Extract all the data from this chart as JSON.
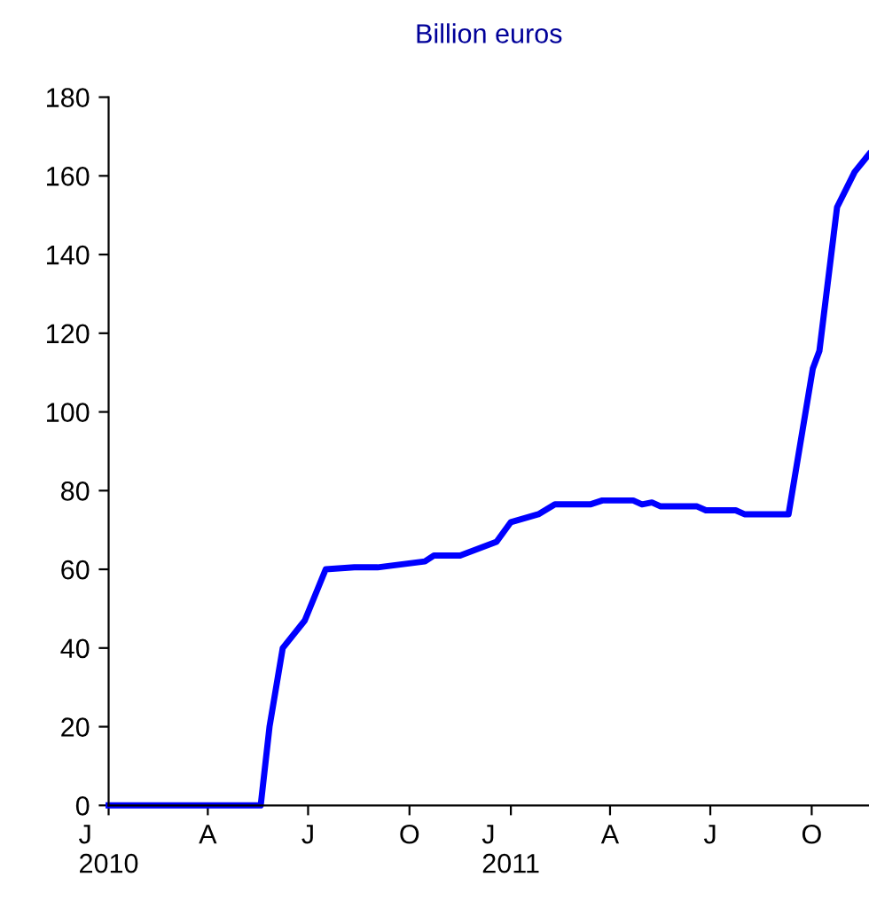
{
  "chart_data": {
    "type": "line",
    "title": "Billion euros",
    "x": [
      "2010-01-01",
      "2010-05-19",
      "2010-05-27",
      "2010-06-08",
      "2010-06-28",
      "2010-07-17",
      "2010-08-12",
      "2010-09-02",
      "2010-10-15",
      "2010-10-23",
      "2010-11-16",
      "2010-12-19",
      "2011-01-01",
      "2011-01-26",
      "2011-02-10",
      "2011-03-14",
      "2011-03-25",
      "2011-04-22",
      "2011-04-30",
      "2011-05-09",
      "2011-05-17",
      "2011-06-19",
      "2011-06-27",
      "2011-07-24",
      "2011-08-01",
      "2011-09-10",
      "2011-10-02",
      "2011-10-08",
      "2011-10-24",
      "2011-11-09",
      "2011-11-22"
    ],
    "series": [
      {
        "color": "#0000ff",
        "values": [
          0,
          0,
          20,
          40,
          47,
          60,
          60.5,
          60.5,
          62,
          63.5,
          63.5,
          67,
          72,
          74,
          76.5,
          76.5,
          77.5,
          77.5,
          76.5,
          77,
          76,
          76,
          75,
          75,
          74,
          74,
          111,
          115.5,
          152,
          161,
          165.5
        ]
      }
    ],
    "xlim": [
      "2010-01-01",
      "2011-11-22"
    ],
    "xticks": [
      {
        "value": "2010-01-01",
        "label": "J\n2010"
      },
      {
        "value": "2010-04-01",
        "label": "A"
      },
      {
        "value": "2010-07-01",
        "label": "J"
      },
      {
        "value": "2010-10-01",
        "label": "O"
      },
      {
        "value": "2011-01-01",
        "label": "J\n2011"
      },
      {
        "value": "2011-04-01",
        "label": "A"
      },
      {
        "value": "2011-07-01",
        "label": "J"
      },
      {
        "value": "2011-10-01",
        "label": "O"
      }
    ],
    "ylim": [
      0,
      180
    ],
    "yticks": [
      0,
      20,
      40,
      60,
      80,
      100,
      120,
      140,
      160,
      180
    ],
    "grid": false,
    "legend": false,
    "marker": "none",
    "line_style": "solid"
  }
}
